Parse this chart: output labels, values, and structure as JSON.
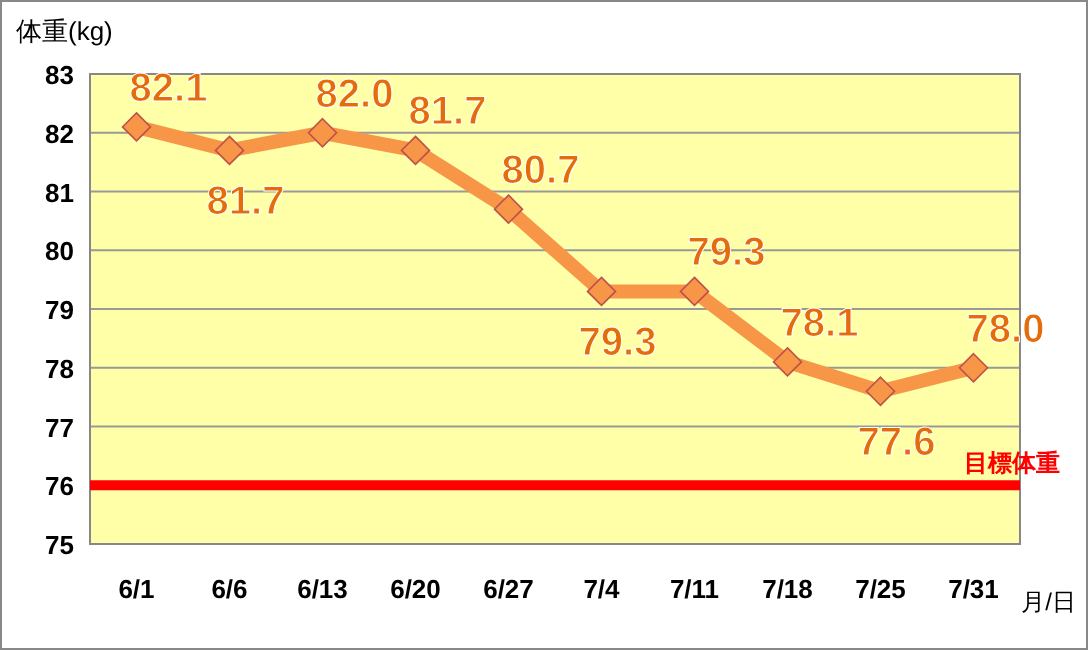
{
  "chart_data": {
    "type": "line",
    "ylabel": "体重(kg)",
    "xlabel": "月/日",
    "categories": [
      "6/1",
      "6/6",
      "6/13",
      "6/20",
      "6/27",
      "7/4",
      "7/11",
      "7/18",
      "7/25",
      "7/31"
    ],
    "series": [
      {
        "color": "#f79646",
        "values": [
          82.1,
          81.7,
          82.0,
          81.7,
          80.7,
          79.3,
          79.3,
          78.1,
          77.6,
          78.0
        ],
        "value_labels": [
          "82.1",
          "81.7",
          "82.0",
          "81.7",
          "80.7",
          "79.3",
          "79.3",
          "78.1",
          "77.6",
          "78.0"
        ]
      }
    ],
    "ylim": [
      75,
      83
    ],
    "yticks": [
      75,
      76,
      77,
      78,
      79,
      80,
      81,
      82,
      83
    ],
    "grid": "y",
    "marker": "diamond",
    "line_style": "solid",
    "ref_lines": [
      {
        "axis": "y",
        "value": 76,
        "label": "目標体重",
        "color": "#ff0000"
      }
    ]
  }
}
